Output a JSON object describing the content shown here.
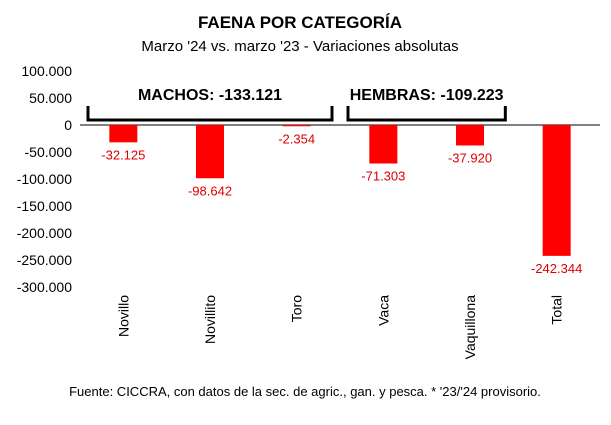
{
  "chart_data": {
    "type": "bar",
    "title": "FAENA POR CATEGORÍA",
    "subtitle": "Marzo '24 vs. marzo '23 - Variaciones absolutas",
    "categories": [
      "Novillo",
      "Novillito",
      "Toro",
      "Vaca",
      "Vaquillona",
      "Total"
    ],
    "values": [
      -32125,
      -98642,
      -2354,
      -71303,
      -37920,
      -242344
    ],
    "value_labels": [
      "-32.125",
      "-98.642",
      "-2.354",
      "-71.303",
      "-37.920",
      "-242.344"
    ],
    "y_ticks": [
      100000,
      50000,
      0,
      -50000,
      -100000,
      -150000,
      -200000,
      -250000,
      -300000
    ],
    "y_tick_labels": [
      "100.000",
      "50.000",
      "0",
      "-50.000",
      "-100.000",
      "-150.000",
      "-200.000",
      "-250.000",
      "-300.000"
    ],
    "ylim": [
      -300000,
      100000
    ],
    "bar_color": "#ff0000",
    "label_color": "#e00000",
    "grid": false,
    "legend": "none",
    "groups": [
      {
        "label": "MACHOS: -133.121",
        "categories": [
          "Novillo",
          "Novillito",
          "Toro"
        ]
      },
      {
        "label": "HEMBRAS: -109.223",
        "categories": [
          "Vaca",
          "Vaquillona"
        ]
      }
    ]
  },
  "footer": "Fuente: CICCRA, con datos de la sec. de agric., gan. y pesca. * '23/'24 provisorio."
}
